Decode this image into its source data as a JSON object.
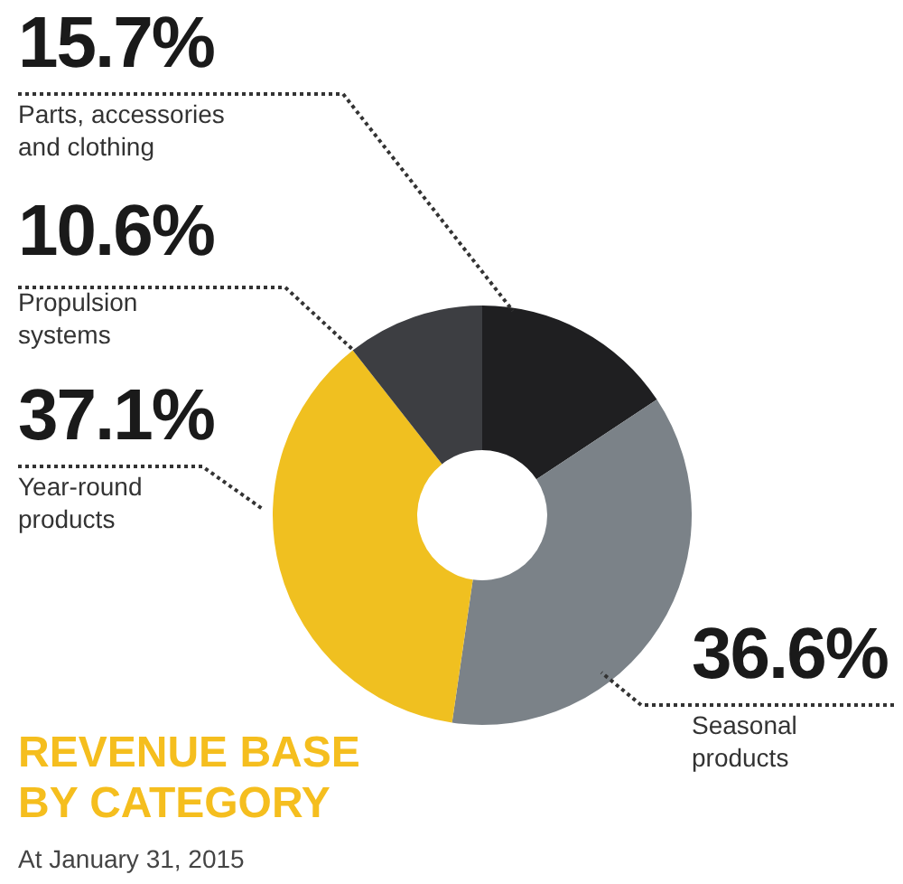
{
  "chart_data": {
    "type": "donut",
    "title": "REVENUE BASE BY CATEGORY",
    "subtitle": "At January 31, 2015",
    "categories": [
      "Parts, accessories and clothing",
      "Seasonal products",
      "Year-round products",
      "Propulsion systems"
    ],
    "values": [
      15.7,
      36.6,
      37.1,
      10.6
    ],
    "value_labels": [
      "15.7%",
      "36.6%",
      "37.1%",
      "10.6%"
    ],
    "colors": [
      "#1f1f21",
      "#7b8288",
      "#f0c020",
      "#3d3e42"
    ]
  }
}
